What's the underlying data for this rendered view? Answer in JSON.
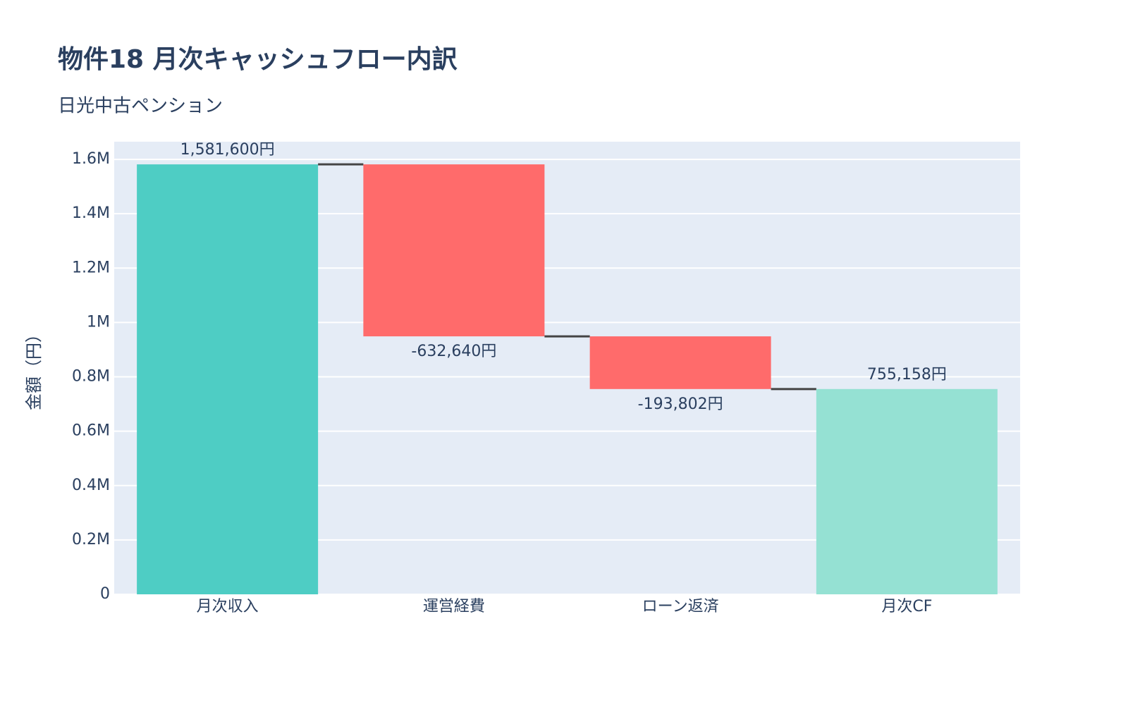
{
  "chart_data": {
    "type": "waterfall",
    "title": "物件18 月次キャッシュフロー内訳",
    "subtitle": "日光中古ペンション",
    "y_label": "金額（円）",
    "categories": [
      "月次収入",
      "運営経費",
      "ローン返済",
      "月次CF"
    ],
    "measure": [
      "relative",
      "relative",
      "relative",
      "total"
    ],
    "values": [
      1581600,
      -632640,
      -193802,
      755158
    ],
    "value_labels": [
      "1,581,600円",
      "-632,640円",
      "-193,802円",
      "755,158円"
    ],
    "colors": {
      "increasing": "#4ECDC4",
      "decreasing": "#FF6B6B",
      "total": "#95E1D3",
      "connector": "#444444"
    },
    "ylim": [
      0,
      1665000
    ],
    "yticks": [
      0,
      {
        "value": 200000,
        "label": "0.2M"
      },
      {
        "value": 400000,
        "label": "0.4M"
      },
      {
        "value": 600000,
        "label": "0.6M"
      },
      {
        "value": 800000,
        "label": "0.8M"
      },
      {
        "value": 1000000,
        "label": "1M"
      },
      {
        "value": 1200000,
        "label": "1.2M"
      },
      {
        "value": 1400000,
        "label": "1.4M"
      },
      {
        "value": 1600000,
        "label": "1.6M"
      }
    ],
    "grid": true
  }
}
